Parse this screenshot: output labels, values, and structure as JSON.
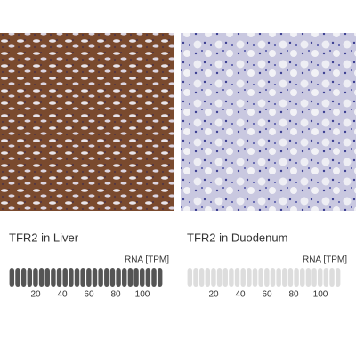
{
  "panels": [
    {
      "caption": "TFR2 in Liver",
      "rna_label": "RNA [TPM]",
      "ticks": [
        20,
        40,
        60,
        80,
        100
      ],
      "bar_color": "#555555",
      "tissue": "liver"
    },
    {
      "caption": "TFR2 in Duodenum",
      "rna_label": "RNA [TPM]",
      "ticks": [
        20,
        40,
        60,
        80,
        100
      ],
      "bar_color": "#dddddd",
      "tissue": "duodenum"
    }
  ]
}
